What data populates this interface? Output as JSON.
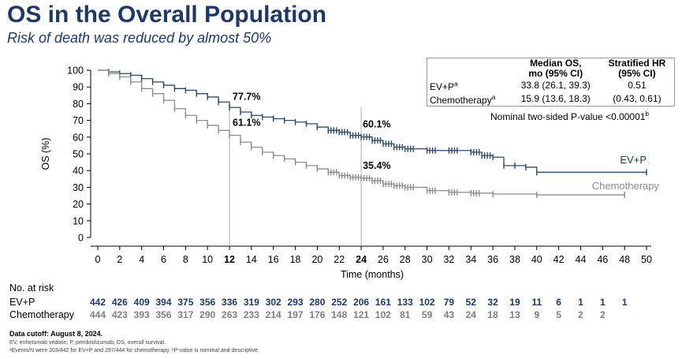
{
  "title": "OS in the Overall Population",
  "subtitle": "Risk of death was reduced by almost 50%",
  "chart_data": {
    "type": "line",
    "subtype": "kaplan-meier",
    "ylabel": "OS (%)",
    "xlabel": "Time (months)",
    "xlim": [
      0,
      50
    ],
    "ylim": [
      0,
      100
    ],
    "x_ticks": [
      "0",
      "2",
      "4",
      "6",
      "8",
      "10",
      "12",
      "14",
      "16",
      "18",
      "20",
      "22",
      "24",
      "26",
      "28",
      "30",
      "32",
      "34",
      "36",
      "38",
      "40",
      "42",
      "44",
      "46",
      "48",
      "50"
    ],
    "y_ticks": [
      "0",
      "10",
      "20",
      "30",
      "40",
      "50",
      "60",
      "70",
      "80",
      "90",
      "100"
    ],
    "bold_x_ticks": [
      "12",
      "24"
    ],
    "reference_lines_x": [
      12,
      24
    ],
    "series": [
      {
        "name": "EV+P",
        "color": "#2e4a6b",
        "points": [
          [
            0,
            100
          ],
          [
            1,
            99
          ],
          [
            2,
            98
          ],
          [
            3,
            97
          ],
          [
            4,
            95
          ],
          [
            5,
            93
          ],
          [
            6,
            91
          ],
          [
            7,
            89
          ],
          [
            8,
            88
          ],
          [
            9,
            86
          ],
          [
            10,
            84
          ],
          [
            11,
            81
          ],
          [
            12,
            77.7
          ],
          [
            13,
            75
          ],
          [
            14,
            73
          ],
          [
            15,
            72
          ],
          [
            16,
            71
          ],
          [
            17,
            70
          ],
          [
            18,
            69
          ],
          [
            19,
            68
          ],
          [
            20,
            66
          ],
          [
            21,
            64
          ],
          [
            22,
            63
          ],
          [
            23,
            61
          ],
          [
            24,
            60.1
          ],
          [
            25,
            58
          ],
          [
            26,
            56
          ],
          [
            27,
            54
          ],
          [
            28,
            53
          ],
          [
            30,
            52
          ],
          [
            32,
            52
          ],
          [
            34,
            51
          ],
          [
            35,
            49
          ],
          [
            36,
            48
          ],
          [
            37,
            43
          ],
          [
            38,
            43
          ],
          [
            39,
            42
          ],
          [
            40,
            39
          ],
          [
            50,
            39
          ]
        ]
      },
      {
        "name": "Chemotherapy",
        "color": "#8c8c8c",
        "points": [
          [
            0,
            100
          ],
          [
            1,
            98
          ],
          [
            2,
            96
          ],
          [
            3,
            93
          ],
          [
            4,
            89
          ],
          [
            5,
            86
          ],
          [
            6,
            82
          ],
          [
            7,
            77
          ],
          [
            8,
            73
          ],
          [
            9,
            70
          ],
          [
            10,
            67
          ],
          [
            11,
            64
          ],
          [
            12,
            61.1
          ],
          [
            13,
            57
          ],
          [
            14,
            54
          ],
          [
            15,
            51
          ],
          [
            16,
            49
          ],
          [
            17,
            47
          ],
          [
            18,
            45
          ],
          [
            19,
            43
          ],
          [
            20,
            41
          ],
          [
            21,
            39
          ],
          [
            22,
            37
          ],
          [
            23,
            36
          ],
          [
            24,
            35.4
          ],
          [
            25,
            34
          ],
          [
            26,
            32
          ],
          [
            27,
            31
          ],
          [
            28,
            30
          ],
          [
            30,
            28
          ],
          [
            32,
            27
          ],
          [
            34,
            26.5
          ],
          [
            36,
            26
          ],
          [
            40,
            25.5
          ],
          [
            48,
            25.5
          ]
        ]
      }
    ],
    "annotations": [
      {
        "text": "77.7%",
        "x": 12,
        "y": 77.7
      },
      {
        "text": "61.1%",
        "x": 12,
        "y": 61.1
      },
      {
        "text": "60.1%",
        "x": 24,
        "y": 60.1
      },
      {
        "text": "35.4%",
        "x": 24,
        "y": 35.4
      }
    ],
    "curve_labels": {
      "ev_p": "EV+P",
      "chemo": "Chemotherapy"
    }
  },
  "hr_table": {
    "header_median": [
      "Median OS,",
      "mo (95% CI)"
    ],
    "header_hr": [
      "Stratified HR",
      "(95% CI)"
    ],
    "rows": [
      {
        "label": "EV+P",
        "sup": "a",
        "median": "33.8 (26.1, 39.3)",
        "hr": "0.51"
      },
      {
        "label": "Chemotherapy",
        "sup": "a",
        "median": "15.9 (13.6, 18.3)",
        "hr": "(0.43, 0.61)"
      }
    ]
  },
  "pvalue": {
    "text": "Nominal two-sided P-value <0.00001",
    "sup": "b"
  },
  "risk_table": {
    "heading": "No. at risk",
    "times": [
      0,
      2,
      4,
      6,
      8,
      10,
      12,
      14,
      16,
      18,
      20,
      22,
      24,
      26,
      28,
      30,
      32,
      34,
      36,
      38,
      40,
      42,
      44,
      46,
      48
    ],
    "ev_p_label": "EV+P",
    "ev_p_color": "#1f3864",
    "ev_p": [
      "442",
      "426",
      "409",
      "394",
      "375",
      "356",
      "336",
      "319",
      "302",
      "293",
      "280",
      "252",
      "206",
      "161",
      "133",
      "102",
      "79",
      "52",
      "32",
      "19",
      "11",
      "6",
      "1",
      "1",
      "1"
    ],
    "chemo_label": "Chemotherapy",
    "chemo_color": "#7f7f7f",
    "chemo": [
      "444",
      "423",
      "393",
      "356",
      "317",
      "290",
      "263",
      "233",
      "214",
      "197",
      "176",
      "148",
      "121",
      "102",
      "81",
      "59",
      "43",
      "24",
      "18",
      "13",
      "9",
      "5",
      "2",
      "2"
    ]
  },
  "footer": {
    "cutoff": "Data cutoff: August 8, 2024.",
    "abbrev": "EV, enfortumab vedotin; P, pembrolizumab; OS, overall survival.",
    "notes": "ᵃEvents/N were 203/442 for EV+P and 297/444 for chemotherapy. ᵇP-value is nominal and descriptive."
  }
}
